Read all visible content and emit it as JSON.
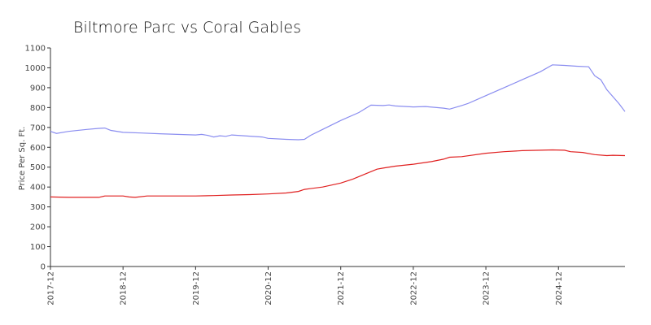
{
  "chart_data": {
    "type": "line",
    "title": "Biltmore Parc vs Coral Gables",
    "xlabel": "",
    "ylabel": "Price Per Sq. Ft.",
    "ylim": [
      0,
      1100
    ],
    "yticks": [
      0,
      100,
      200,
      300,
      400,
      500,
      600,
      700,
      800,
      900,
      1000,
      1100
    ],
    "xlim": [
      "2017-12",
      "2025-11"
    ],
    "xticks": [
      "2017-12",
      "2018-12",
      "2019-12",
      "2020-12",
      "2021-12",
      "2022-12",
      "2023-12",
      "2024-12"
    ],
    "grid": false,
    "legend": "none",
    "series": [
      {
        "color": "#8a8df0",
        "points": [
          [
            "2017-12",
            680
          ],
          [
            "2018-01",
            670
          ],
          [
            "2018-03",
            680
          ],
          [
            "2018-06",
            690
          ],
          [
            "2018-08",
            695
          ],
          [
            "2018-09",
            697
          ],
          [
            "2018-10",
            685
          ],
          [
            "2018-12",
            675
          ],
          [
            "2019-03",
            672
          ],
          [
            "2019-06",
            668
          ],
          [
            "2019-09",
            665
          ],
          [
            "2019-12",
            662
          ],
          [
            "2020-01",
            665
          ],
          [
            "2020-02",
            660
          ],
          [
            "2020-03",
            652
          ],
          [
            "2020-04",
            658
          ],
          [
            "2020-05",
            655
          ],
          [
            "2020-06",
            662
          ],
          [
            "2020-09",
            656
          ],
          [
            "2020-11",
            652
          ],
          [
            "2020-12",
            645
          ],
          [
            "2021-03",
            640
          ],
          [
            "2021-05",
            638
          ],
          [
            "2021-06",
            640
          ],
          [
            "2021-07",
            660
          ],
          [
            "2021-09",
            690
          ],
          [
            "2021-12",
            735
          ],
          [
            "2022-03",
            775
          ],
          [
            "2022-05",
            812
          ],
          [
            "2022-07",
            810
          ],
          [
            "2022-08",
            813
          ],
          [
            "2022-09",
            808
          ],
          [
            "2022-12",
            803
          ],
          [
            "2023-02",
            805
          ],
          [
            "2023-05",
            797
          ],
          [
            "2023-06",
            792
          ],
          [
            "2023-08",
            810
          ],
          [
            "2023-09",
            820
          ],
          [
            "2023-12",
            860
          ],
          [
            "2024-03",
            900
          ],
          [
            "2024-06",
            940
          ],
          [
            "2024-09",
            980
          ],
          [
            "2024-11",
            1015
          ],
          [
            "2025-01",
            1012
          ],
          [
            "2025-03",
            1008
          ],
          [
            "2025-05",
            1005
          ],
          [
            "2025-06",
            960
          ],
          [
            "2025-07",
            940
          ],
          [
            "2025-08",
            890
          ],
          [
            "2025-10",
            820
          ],
          [
            "2025-11",
            780
          ]
        ]
      },
      {
        "color": "#e02020",
        "points": [
          [
            "2017-12",
            350
          ],
          [
            "2018-03",
            348
          ],
          [
            "2018-06",
            348
          ],
          [
            "2018-08",
            348
          ],
          [
            "2018-09",
            355
          ],
          [
            "2018-12",
            355
          ],
          [
            "2019-01",
            350
          ],
          [
            "2019-02",
            348
          ],
          [
            "2019-04",
            355
          ],
          [
            "2019-07",
            355
          ],
          [
            "2019-12",
            355
          ],
          [
            "2020-03",
            357
          ],
          [
            "2020-06",
            360
          ],
          [
            "2020-09",
            362
          ],
          [
            "2020-12",
            365
          ],
          [
            "2021-03",
            370
          ],
          [
            "2021-05",
            378
          ],
          [
            "2021-06",
            388
          ],
          [
            "2021-09",
            400
          ],
          [
            "2021-12",
            420
          ],
          [
            "2022-02",
            440
          ],
          [
            "2022-04",
            465
          ],
          [
            "2022-06",
            490
          ],
          [
            "2022-07",
            495
          ],
          [
            "2022-09",
            505
          ],
          [
            "2022-12",
            515
          ],
          [
            "2023-03",
            528
          ],
          [
            "2023-05",
            540
          ],
          [
            "2023-06",
            550
          ],
          [
            "2023-08",
            553
          ],
          [
            "2023-12",
            570
          ],
          [
            "2024-03",
            578
          ],
          [
            "2024-06",
            583
          ],
          [
            "2024-09",
            585
          ],
          [
            "2024-11",
            587
          ],
          [
            "2025-01",
            585
          ],
          [
            "2025-02",
            578
          ],
          [
            "2025-04",
            574
          ],
          [
            "2025-06",
            563
          ],
          [
            "2025-08",
            558
          ],
          [
            "2025-09",
            560
          ],
          [
            "2025-11",
            558
          ]
        ]
      }
    ]
  }
}
